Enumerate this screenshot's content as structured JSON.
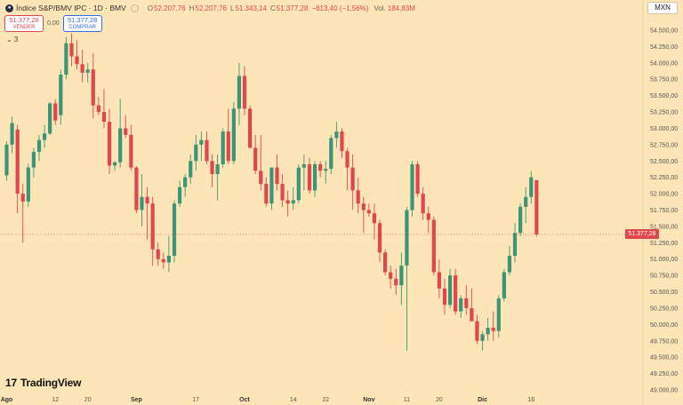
{
  "legend": {
    "title": "Índice S&P/BMV IPC · 1D · BMV",
    "open_label": "O",
    "open": "52.207,76",
    "high_label": "H",
    "high": "52.207,76",
    "low_label": "L",
    "low": "51.343,14",
    "close_label": "C",
    "close": "51.377,28",
    "change": "−813,40 (−1,56%)",
    "volume_label": "Vol.",
    "volume": "184,83M"
  },
  "trade": {
    "sell_price": "51.377,28",
    "sell_label": "VENDER",
    "spread": "0,00",
    "buy_price": "51.377,28",
    "buy_label": "COMPRAR"
  },
  "indicators_toggle": "⌄ 3",
  "currency": "MXN",
  "last_price_tag": "51.377,28",
  "logo_text": "TradingView",
  "colors": {
    "background": "#fde5b8",
    "up": "#3a9676",
    "down": "#e0474c",
    "price_line": "#e0474c"
  },
  "chart_data": {
    "type": "candlestick",
    "title": "Índice S&P/BMV IPC · 1D · BMV",
    "currency": "MXN",
    "ylim": [
      49000,
      54700
    ],
    "y_ticks": [
      "54.500,00",
      "54.250,00",
      "54.000,00",
      "53.750,00",
      "53.500,00",
      "53.250,00",
      "53.000,00",
      "52.750,00",
      "52.500,00",
      "52.250,00",
      "52.000,00",
      "51.750,00",
      "51.500,00",
      "51.250,00",
      "51.000,00",
      "50.750,00",
      "50.500,00",
      "50.250,00",
      "50.000,00",
      "49.750,00",
      "49.500,00",
      "49.250,00",
      "49.000,00"
    ],
    "x_ticks": [
      {
        "index": 0,
        "label": "Ago"
      },
      {
        "index": 9,
        "label": "12"
      },
      {
        "index": 15,
        "label": "20"
      },
      {
        "index": 24,
        "label": "Sep"
      },
      {
        "index": 35,
        "label": "17"
      },
      {
        "index": 44,
        "label": "Oct"
      },
      {
        "index": 53,
        "label": "14"
      },
      {
        "index": 59,
        "label": "22"
      },
      {
        "index": 67,
        "label": "Nov"
      },
      {
        "index": 74,
        "label": "11"
      },
      {
        "index": 80,
        "label": "20"
      },
      {
        "index": 88,
        "label": "Dic"
      },
      {
        "index": 97,
        "label": "16"
      }
    ],
    "candles": [
      [
        52280,
        52800,
        52200,
        52750
      ],
      [
        52750,
        53180,
        52620,
        53080
      ],
      [
        52980,
        53050,
        51700,
        52000
      ],
      [
        52000,
        52150,
        51250,
        51880
      ],
      [
        51880,
        52460,
        51800,
        52400
      ],
      [
        52400,
        52700,
        52250,
        52640
      ],
      [
        52640,
        52900,
        52500,
        52820
      ],
      [
        52820,
        53050,
        52700,
        52920
      ],
      [
        52920,
        53400,
        52900,
        53380
      ],
      [
        53380,
        53450,
        53050,
        53120
      ],
      [
        53200,
        53900,
        53050,
        53820
      ],
      [
        53820,
        54400,
        53750,
        54300
      ],
      [
        54300,
        54450,
        53950,
        54100
      ],
      [
        54100,
        54350,
        53900,
        53980
      ],
      [
        53980,
        54200,
        53700,
        53850
      ],
      [
        53850,
        54000,
        53700,
        53900
      ],
      [
        53900,
        54150,
        53150,
        53350
      ],
      [
        53350,
        53480,
        53200,
        53250
      ],
      [
        53250,
        53600,
        53000,
        53100
      ],
      [
        53100,
        53300,
        52300,
        52430
      ],
      [
        52430,
        52500,
        52350,
        52480
      ],
      [
        52480,
        53450,
        52400,
        53000
      ],
      [
        53000,
        53200,
        52850,
        52900
      ],
      [
        52900,
        53050,
        52350,
        52400
      ],
      [
        52400,
        52420,
        51700,
        51750
      ],
      [
        51750,
        52300,
        51500,
        51950
      ],
      [
        51950,
        52100,
        51300,
        51850
      ],
      [
        51850,
        51950,
        50900,
        51150
      ],
      [
        51150,
        51250,
        50900,
        51000
      ],
      [
        51000,
        51100,
        50850,
        50950
      ],
      [
        50950,
        51350,
        50800,
        51050
      ],
      [
        51050,
        51900,
        50950,
        51850
      ],
      [
        51850,
        52200,
        51800,
        52100
      ],
      [
        52100,
        52300,
        51950,
        52250
      ],
      [
        52250,
        52600,
        52150,
        52500
      ],
      [
        52500,
        52900,
        52350,
        52750
      ],
      [
        52750,
        52950,
        52500,
        52820
      ],
      [
        52820,
        52950,
        52450,
        52500
      ],
      [
        52500,
        52600,
        52100,
        52300
      ],
      [
        52300,
        52600,
        51900,
        52450
      ],
      [
        52450,
        53000,
        52400,
        52950
      ],
      [
        52950,
        53300,
        52450,
        52500
      ],
      [
        52500,
        53400,
        52450,
        53300
      ],
      [
        53300,
        54000,
        53050,
        53800
      ],
      [
        53800,
        53950,
        53200,
        53300
      ],
      [
        53300,
        53350,
        52700,
        52700
      ],
      [
        52700,
        52900,
        52300,
        52350
      ],
      [
        52350,
        52900,
        52050,
        52150
      ],
      [
        52150,
        52250,
        51800,
        51850
      ],
      [
        51850,
        52400,
        51750,
        52400
      ],
      [
        52400,
        52600,
        52050,
        52150
      ],
      [
        52150,
        52300,
        51800,
        51900
      ],
      [
        51900,
        52050,
        51650,
        51850
      ],
      [
        51850,
        52100,
        51750,
        51900
      ],
      [
        51900,
        52450,
        51850,
        52400
      ],
      [
        52400,
        52600,
        52050,
        52450
      ],
      [
        52450,
        52550,
        52000,
        52050
      ],
      [
        52050,
        52500,
        51950,
        52450
      ],
      [
        52450,
        52500,
        52250,
        52350
      ],
      [
        52350,
        52500,
        52150,
        52380
      ],
      [
        52380,
        52900,
        52300,
        52850
      ],
      [
        52850,
        53100,
        52700,
        52950
      ],
      [
        52950,
        53000,
        52550,
        52650
      ],
      [
        52650,
        52700,
        52050,
        52400
      ],
      [
        52400,
        52600,
        51750,
        52050
      ],
      [
        52050,
        52250,
        51700,
        51850
      ],
      [
        51850,
        51950,
        51400,
        51750
      ],
      [
        51750,
        51850,
        51650,
        51700
      ],
      [
        51700,
        51850,
        51300,
        51550
      ],
      [
        51550,
        51600,
        50950,
        51100
      ],
      [
        51100,
        51150,
        50750,
        50800
      ],
      [
        50800,
        50900,
        50550,
        50700
      ],
      [
        50700,
        50850,
        50450,
        50600
      ],
      [
        50600,
        51100,
        50300,
        50900
      ],
      [
        50900,
        51800,
        49600,
        51750
      ],
      [
        51750,
        52500,
        51650,
        52450
      ],
      [
        52450,
        52500,
        51950,
        52000
      ],
      [
        52000,
        52100,
        51600,
        51700
      ],
      [
        51700,
        51800,
        51400,
        51600
      ],
      [
        51600,
        51650,
        50750,
        50800
      ],
      [
        50800,
        51000,
        50400,
        50550
      ],
      [
        50550,
        50700,
        50150,
        50300
      ],
      [
        50300,
        50850,
        50250,
        50750
      ],
      [
        50750,
        50850,
        50150,
        50200
      ],
      [
        50200,
        50450,
        50100,
        50400
      ],
      [
        50400,
        50600,
        50150,
        50250
      ],
      [
        50250,
        50550,
        50050,
        50050
      ],
      [
        50050,
        50150,
        49700,
        49750
      ],
      [
        49750,
        49900,
        49600,
        49850
      ],
      [
        49850,
        50100,
        49750,
        49950
      ],
      [
        49950,
        50200,
        49750,
        49900
      ],
      [
        49900,
        50450,
        49800,
        50400
      ],
      [
        50400,
        50850,
        50350,
        50800
      ],
      [
        50800,
        51200,
        50750,
        51050
      ],
      [
        51050,
        51550,
        50950,
        51400
      ],
      [
        51400,
        51850,
        51350,
        51800
      ],
      [
        51800,
        52100,
        51550,
        51950
      ],
      [
        51950,
        52350,
        51850,
        52250
      ],
      [
        52207,
        52207,
        51343,
        51377
      ]
    ]
  }
}
